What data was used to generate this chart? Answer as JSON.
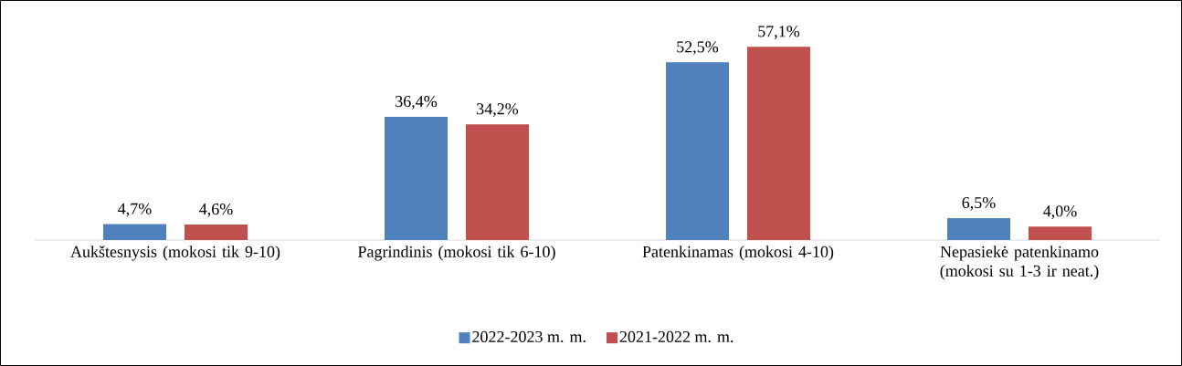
{
  "chart_data": {
    "type": "bar",
    "categories": [
      "Aukštesnysis (mokosi tik 9-10)",
      "Pagrindinis (mokosi tik 6-10)",
      "Patenkinamas (mokosi 4-10)",
      "Nepasiekė patenkinamo (mokosi su 1-3 ir neat.)"
    ],
    "series": [
      {
        "name": "2022-2023 m. m.",
        "color": "#4f81bd",
        "values": [
          4.7,
          36.4,
          52.5,
          6.5
        ],
        "value_labels": [
          "4,7%",
          "36,4%",
          "52,5%",
          "6,5%"
        ]
      },
      {
        "name": "2021-2022 m. m.",
        "color": "#c0504d",
        "values": [
          4.6,
          34.2,
          57.1,
          4.0
        ],
        "value_labels": [
          "4,6%",
          "34,2%",
          "57,1%",
          "4,0%"
        ]
      }
    ],
    "legend": "bottom"
  }
}
